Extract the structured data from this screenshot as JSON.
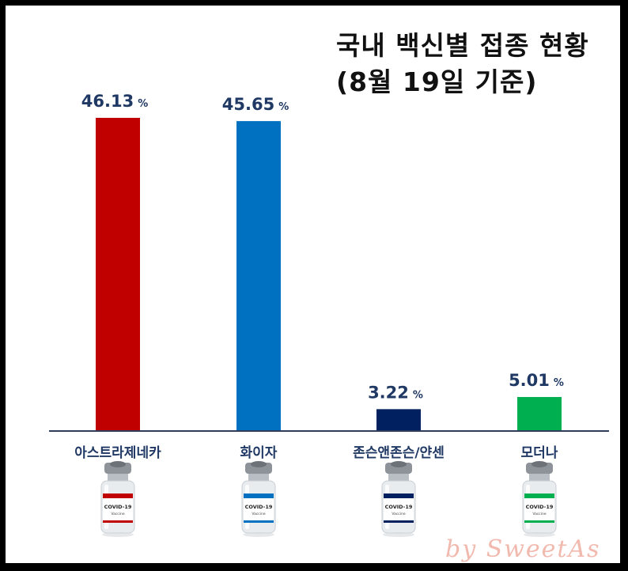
{
  "title_lines": [
    "국내 백신별 접종 현황",
    "(8월 19일 기준)"
  ],
  "watermark": "by SweetAs",
  "colors": {
    "axis": "#2f3b5c",
    "value_label": "#1f3864",
    "category_label": "#1f3864"
  },
  "vial_label": {
    "line1": "COVID-19",
    "line2": "Vaccine"
  },
  "chart_data": {
    "type": "bar",
    "title": "국내 백신별 접종 현황 (8월 19일 기준)",
    "categories": [
      "아스트라제네카",
      "화이자",
      "존슨앤존슨/얀센",
      "모더나"
    ],
    "series": [
      {
        "values": [
          46.13,
          45.65,
          3.22,
          5.01
        ]
      }
    ],
    "value_suffix": "%",
    "bar_colors": [
      "#c00000",
      "#0070c0",
      "#002060",
      "#00b050"
    ],
    "ylim": [
      0,
      50
    ],
    "grid": false,
    "legend": "none",
    "xlabel": "",
    "ylabel": ""
  }
}
